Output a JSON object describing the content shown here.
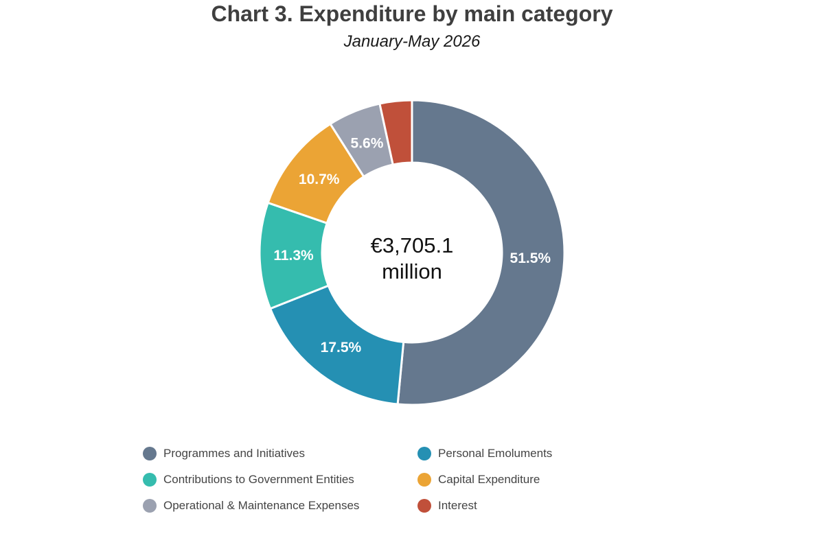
{
  "chart_data": {
    "type": "pie",
    "title": "Chart 3. Expenditure by main category",
    "subtitle": "January-May 2026",
    "center_label": [
      "€3,705.1",
      "million"
    ],
    "legend_position": "bottom",
    "slices": [
      {
        "name": "Programmes and Initiatives",
        "value": 51.5,
        "label": "51.5%",
        "color": "#65788e"
      },
      {
        "name": "Personal Emoluments",
        "value": 17.5,
        "label": "17.5%",
        "color": "#2590b3"
      },
      {
        "name": "Contributions to Government Entities",
        "value": 11.3,
        "label": "11.3%",
        "color": "#35bcae"
      },
      {
        "name": "Capital Expenditure",
        "value": 10.7,
        "label": "10.7%",
        "color": "#eba435"
      },
      {
        "name": "Operational & Maintenance Expenses",
        "value": 5.6,
        "label": "5.6%",
        "color": "#9ba1b0"
      },
      {
        "name": "Interest",
        "value": 3.4,
        "label": "",
        "color": "#c0503a"
      }
    ],
    "legend_order": [
      0,
      1,
      2,
      3,
      4,
      5
    ]
  }
}
